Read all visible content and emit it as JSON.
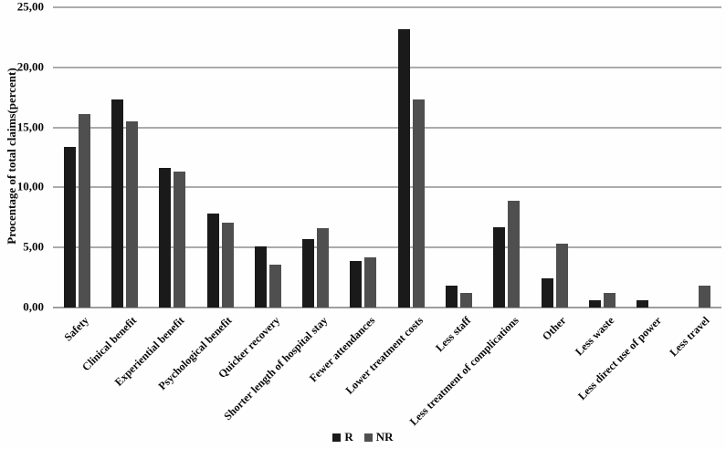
{
  "figure": {
    "background": "#fefefe",
    "text_color": "#0a0a0a",
    "gridline_color": "#ababab"
  },
  "chart_data": {
    "type": "bar",
    "title": "",
    "xlabel": "",
    "ylabel": "Procentage of total claims(percent)",
    "ylim": [
      0,
      25
    ],
    "yticks": [
      0,
      5,
      10,
      15,
      20,
      25
    ],
    "ytick_labels": [
      "0,00",
      "5,00",
      "10,00",
      "15,00",
      "20,00",
      "25,00"
    ],
    "grid": true,
    "legend_position": "bottom-center",
    "categories": [
      "Safety",
      "Clinical benefit",
      "Experiential benefit",
      "Psychological benefit",
      "Quicker recovery",
      "Shorter length of hospital stay",
      "Fewer attendances",
      "Lower treatment costs",
      "Less staff",
      "Less treatment of complications",
      "Other",
      "Less waste",
      "Less direct use of power",
      "Less travel"
    ],
    "series": [
      {
        "name": "R",
        "color": "#1a1a1a",
        "values": [
          13.4,
          17.3,
          11.6,
          7.8,
          5.1,
          5.7,
          3.9,
          23.2,
          1.8,
          6.7,
          2.4,
          0.6,
          0.6,
          0
        ]
      },
      {
        "name": "NR",
        "color": "#4f4f4f",
        "values": [
          16.1,
          15.5,
          11.3,
          7.1,
          3.6,
          6.6,
          4.2,
          17.3,
          1.2,
          8.9,
          5.3,
          1.2,
          0,
          1.8
        ]
      }
    ]
  }
}
